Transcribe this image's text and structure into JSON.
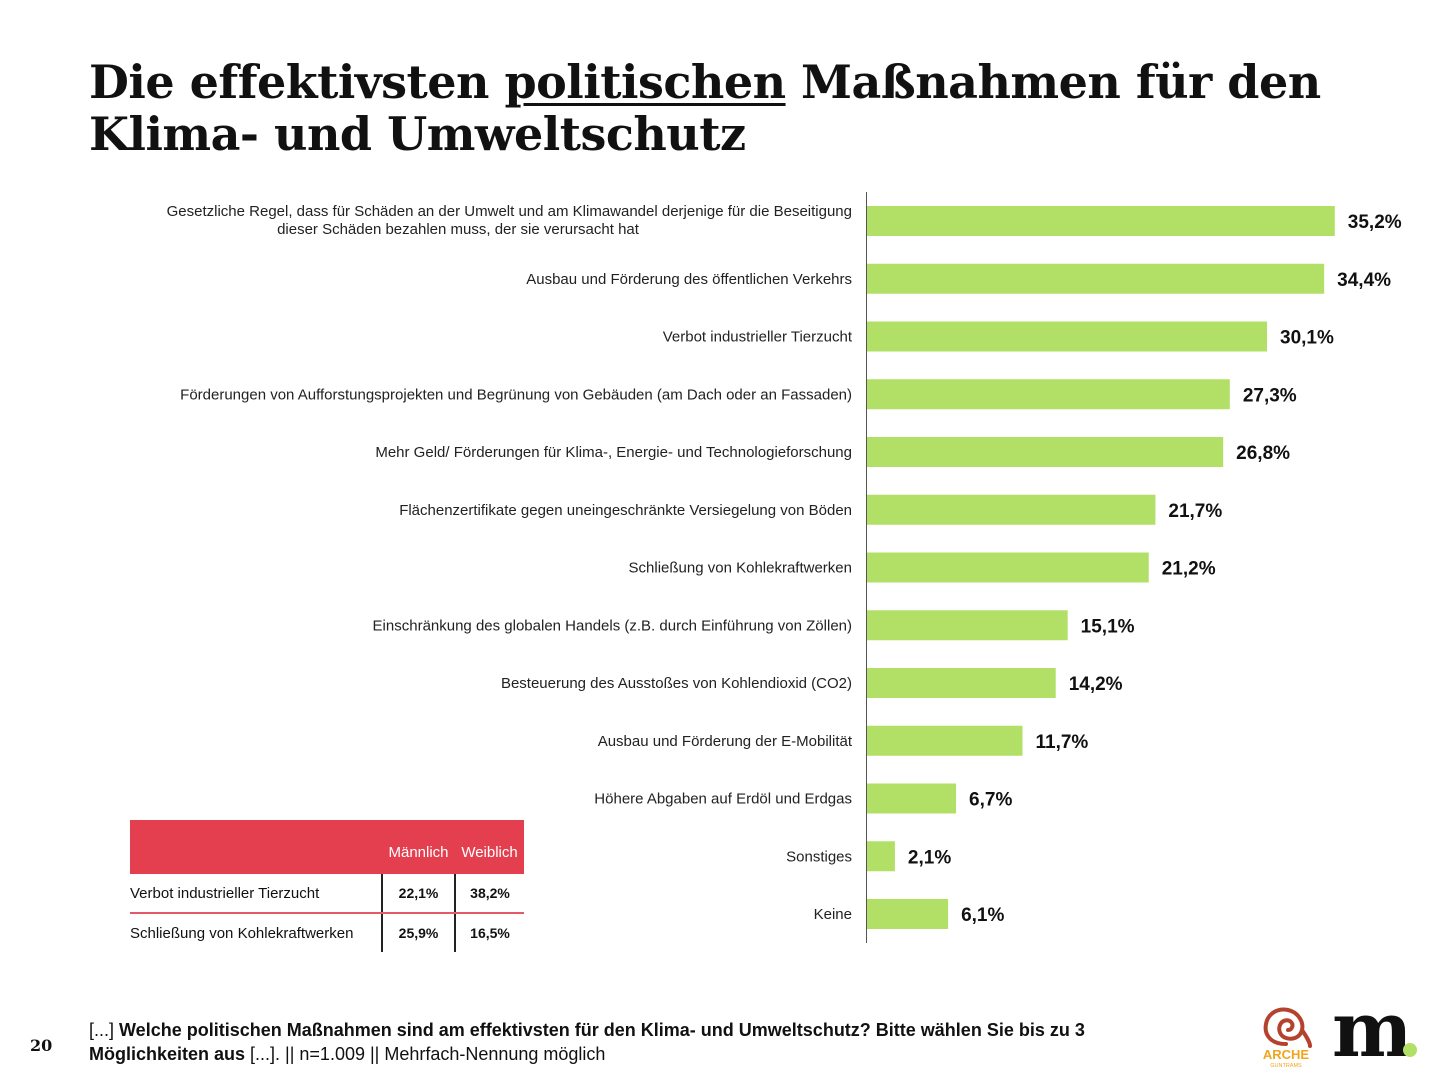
{
  "title": {
    "part1": "Die effektivsten ",
    "underlined": "politischen",
    "part2": " Maßnahmen für den Klima- und Umweltschutz"
  },
  "chart_data": {
    "type": "bar",
    "orientation": "horizontal",
    "title": "Die effektivsten politischen Maßnahmen für den Klima- und Umweltschutz",
    "xlabel": "",
    "ylabel": "",
    "unit": "%",
    "xlim": [
      0,
      36
    ],
    "grid": false,
    "bar_color": "#b2e067",
    "categories": [
      [
        "Gesetzliche Regel, dass für Schäden an der Umwelt und am Klimawandel derjenige für die Beseitigung",
        "dieser Schäden bezahlen muss, der sie verursacht hat"
      ],
      [
        "Ausbau und Förderung des öffentlichen Verkehrs"
      ],
      [
        "Verbot industrieller Tierzucht"
      ],
      [
        "Förderungen von Aufforstungsprojekten und Begrünung von Gebäuden (am Dach oder an Fassaden)"
      ],
      [
        "Mehr Geld/ Förderungen für Klima-, Energie- und Technologieforschung"
      ],
      [
        "Flächenzertifikate gegen uneingeschränkte Versiegelung von Böden"
      ],
      [
        "Schließung von Kohlekraftwerken"
      ],
      [
        "Einschränkung des globalen Handels (z.B. durch Einführung von Zöllen)"
      ],
      [
        "Besteuerung des Ausstoßes von Kohlendioxid (CO2)"
      ],
      [
        "Ausbau und Förderung der E-Mobilität"
      ],
      [
        "Höhere Abgaben auf Erdöl und Erdgas"
      ],
      [
        "Sonstiges"
      ],
      [
        "Keine"
      ]
    ],
    "values": [
      35.2,
      34.4,
      30.1,
      27.3,
      26.8,
      21.7,
      21.2,
      15.1,
      14.2,
      11.7,
      6.7,
      2.1,
      6.1
    ],
    "value_labels": [
      "35,2%",
      "34,4%",
      "30,1%",
      "27,3%",
      "26,8%",
      "21,7%",
      "21,2%",
      "15,1%",
      "14,2%",
      "11,7%",
      "6,7%",
      "2,1%",
      "6,1%"
    ]
  },
  "gender_table": {
    "header_color": "#e33f4f",
    "columns": [
      "",
      "Männlich",
      "Weiblich"
    ],
    "rows": [
      {
        "label": "Verbot industrieller Tierzucht",
        "male": "22,1%",
        "female": "38,2%"
      },
      {
        "label": "Schließung von Kohlekraftwerken",
        "male": "25,9%",
        "female": "16,5%"
      }
    ]
  },
  "footer": {
    "page_number": "20",
    "prefix": "[...] ",
    "question_bold": "Welche politischen Maßnahmen sind am effektivsten für den Klima- und Umweltschutz? Bitte wählen Sie bis zu 3 Möglichkeiten aus",
    "suffix": " [...]. || n=1.009 || Mehrfach-Nennung möglich"
  },
  "logos": {
    "arche_text": "ARCHE",
    "arche_sub": "GUNTRAMS",
    "m_logo": "m",
    "accent_color": "#b2e067"
  }
}
